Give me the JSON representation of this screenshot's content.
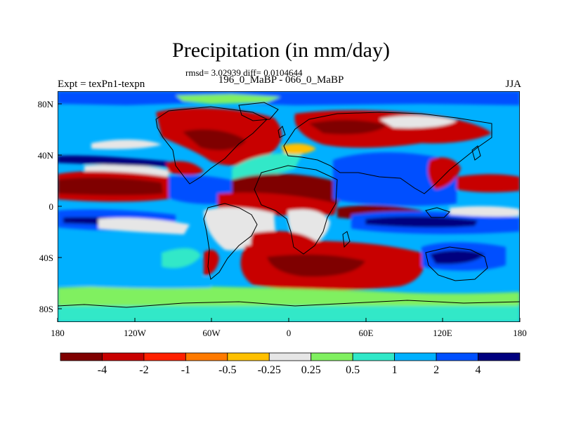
{
  "map": {
    "title": "Precipitation (in mm/day)",
    "stats": "rmsd= 3.02939 diff= 0.0104644",
    "subtitle": "196_0_MaBP - 066_0_MaBP",
    "left_label": "Expt = texPn1-texpn",
    "right_label": "JJA",
    "lat_labels": [
      "80N",
      "40N",
      "0",
      "40S",
      "80S"
    ],
    "lon_labels": [
      "180",
      "120W",
      "60W",
      "0",
      "60E",
      "120E",
      "180"
    ]
  },
  "legend": {
    "labels": [
      "-4",
      "-2",
      "-1",
      "-0.5",
      "-0.25",
      "0.25",
      "0.5",
      "1",
      "2",
      "4"
    ],
    "colors": [
      "#7f0000",
      "#c80000",
      "#ff2000",
      "#ff7a00",
      "#ffc000",
      "#e6e6e6",
      "#80f060",
      "#30e8c8",
      "#00b0ff",
      "#0050ff",
      "#00007f"
    ]
  },
  "palette": {
    "ocean_base": "#00b0ff",
    "dark_red": "#7f0000",
    "red": "#c80000",
    "light_red": "#ff2000",
    "orange": "#ff7a00",
    "gold": "#ffc000",
    "neutral": "#e6e6e6",
    "green": "#80f060",
    "cyan": "#30e8c8",
    "light_blue": "#00b0ff",
    "blue": "#0050ff",
    "navy": "#00007f"
  }
}
